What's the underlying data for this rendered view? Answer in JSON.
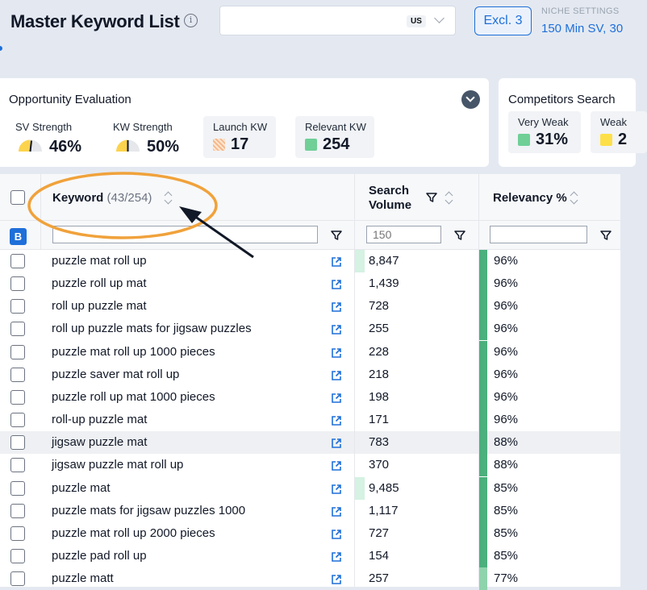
{
  "header": {
    "title": "Master Keyword List",
    "info_icon": "info-icon",
    "market": "US",
    "excl_label": "Excl. 3",
    "niche_settings_label": "NICHE SETTINGS",
    "niche_settings_value": "150 Min SV, 30"
  },
  "opportunity": {
    "title": "Opportunity Evaluation",
    "sv_strength_label": "SV Strength",
    "sv_strength_value": "46%",
    "sv_strength_level": 0.46,
    "kw_strength_label": "KW Strength",
    "kw_strength_value": "50%",
    "kw_strength_level": 0.5,
    "launch_kw_label": "Launch KW",
    "launch_kw_value": "17",
    "relevant_kw_label": "Relevant KW",
    "relevant_kw_value": "254"
  },
  "competitors": {
    "title": "Competitors Search",
    "very_weak_label": "Very Weak",
    "very_weak_value": "31%",
    "weak_label": "Weak",
    "weak_value": "2"
  },
  "colors": {
    "accent": "#1e6fd9",
    "gauge_yellow": "#fcd34d",
    "relevancy_green": "#4bb07d",
    "relevancy_light": "#8fd3ad",
    "sv_bar": "#d5f2e2",
    "annotation_orange": "#f0a23b"
  },
  "table": {
    "keyword_header": "Keyword",
    "keyword_count": "(43/254)",
    "search_volume_header_line1": "Search",
    "search_volume_header_line2": "Volume",
    "relevancy_header": "Relevancy %",
    "bulk_badge": "B",
    "sv_filter_placeholder": "150",
    "rows": [
      {
        "keyword": "puzzle mat roll up",
        "sv": "8,847",
        "relevancy": "96%",
        "sv_fill": 1,
        "highlight": false
      },
      {
        "keyword": "puzzle roll up mat",
        "sv": "1,439",
        "relevancy": "96%",
        "sv_fill": 0,
        "highlight": false
      },
      {
        "keyword": "roll up puzzle mat",
        "sv": "728",
        "relevancy": "96%",
        "sv_fill": 0,
        "highlight": false
      },
      {
        "keyword": "roll up puzzle mats for jigsaw puzzles",
        "sv": "255",
        "relevancy": "96%",
        "sv_fill": 0,
        "highlight": false
      },
      {
        "keyword": "puzzle mat roll up 1000 pieces",
        "sv": "228",
        "relevancy": "96%",
        "sv_fill": 0,
        "highlight": false
      },
      {
        "keyword": "puzzle saver mat roll up",
        "sv": "218",
        "relevancy": "96%",
        "sv_fill": 0,
        "highlight": false
      },
      {
        "keyword": "puzzle roll up mat 1000 pieces",
        "sv": "198",
        "relevancy": "96%",
        "sv_fill": 0,
        "highlight": false
      },
      {
        "keyword": "roll-up puzzle mat",
        "sv": "171",
        "relevancy": "96%",
        "sv_fill": 0,
        "highlight": false
      },
      {
        "keyword": "jigsaw puzzle mat",
        "sv": "783",
        "relevancy": "88%",
        "sv_fill": 0,
        "highlight": true
      },
      {
        "keyword": "jigsaw puzzle mat roll up",
        "sv": "370",
        "relevancy": "88%",
        "sv_fill": 0,
        "highlight": false
      },
      {
        "keyword": "puzzle mat",
        "sv": "9,485",
        "relevancy": "85%",
        "sv_fill": 1,
        "highlight": false
      },
      {
        "keyword": "puzzle mats for jigsaw puzzles 1000",
        "sv": "1,117",
        "relevancy": "85%",
        "sv_fill": 0,
        "highlight": false
      },
      {
        "keyword": "puzzle mat roll up 2000 pieces",
        "sv": "727",
        "relevancy": "85%",
        "sv_fill": 0,
        "highlight": false
      },
      {
        "keyword": "puzzle pad roll up",
        "sv": "154",
        "relevancy": "85%",
        "sv_fill": 0,
        "highlight": false
      },
      {
        "keyword": "puzzle matt",
        "sv": "257",
        "relevancy": "77%",
        "sv_fill": 0,
        "highlight": false
      }
    ]
  }
}
